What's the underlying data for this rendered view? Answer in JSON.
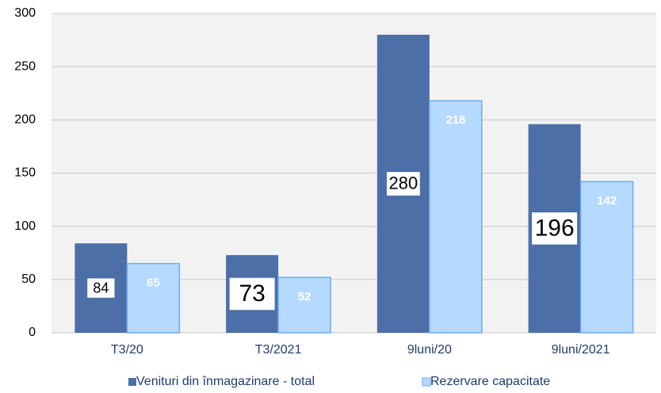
{
  "chart_data": {
    "type": "bar",
    "categories": [
      "T3/20",
      "T3/2021",
      "9luni/20",
      "9luni/2021"
    ],
    "series": [
      {
        "name": "Venituri din înmagazinare - total",
        "color": "#4d6fa8",
        "values": [
          84,
          73,
          280,
          196
        ]
      },
      {
        "name": "Rezervare capacitate",
        "color": "#b6d9ff",
        "values": [
          65,
          52,
          218,
          142
        ]
      }
    ],
    "ylim": [
      0,
      300
    ],
    "yticks": [
      0,
      50,
      100,
      150,
      200,
      250,
      300
    ],
    "grid": true,
    "legend": "bottom"
  }
}
